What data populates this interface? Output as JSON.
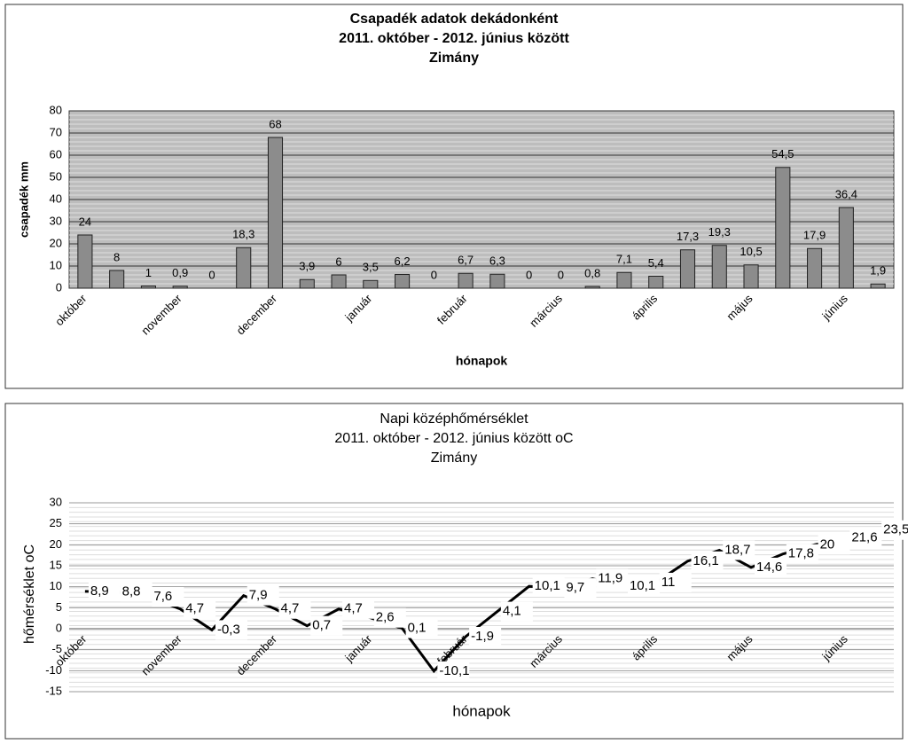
{
  "chart_data": [
    {
      "type": "bar",
      "title": [
        "Csapadék adatok dekádonként",
        "2011. október - 2012. június között",
        "Zimány"
      ],
      "y_label": "csapadék mm",
      "x_label": "hónapok",
      "categories": [
        "október",
        null,
        null,
        "november",
        null,
        null,
        "december",
        null,
        null,
        "január",
        null,
        null,
        "február",
        null,
        null,
        "március",
        null,
        null,
        "április",
        null,
        null,
        "május",
        null,
        null,
        "június",
        null
      ],
      "values": [
        24,
        8,
        1,
        0.9,
        0,
        18.3,
        68,
        3.9,
        6,
        3.5,
        6.2,
        0,
        6.7,
        6.3,
        0,
        0,
        0.8,
        7.1,
        5.4,
        17.3,
        19.3,
        10.5,
        54.5,
        17.9,
        36.4,
        1.9
      ],
      "value_labels": [
        "24",
        "8",
        "1",
        "0,9",
        "0",
        "18,3",
        "68",
        "3,9",
        "6",
        "3,5",
        "6,2",
        "0",
        "6,7",
        "6,3",
        "0",
        "0",
        "0,8",
        "7,1",
        "5,4",
        "17,3",
        "19,3",
        "10,5",
        "54,5",
        "17,9",
        "36,4",
        "1,9"
      ],
      "color": "#8c8c8c",
      "ylim": [
        0,
        80
      ],
      "yticks": [
        0,
        10,
        20,
        30,
        40,
        50,
        60,
        70,
        80
      ],
      "grid": true
    },
    {
      "type": "line",
      "title": [
        "Napi középhőmérséklet",
        "2011. október - 2012. június között oC",
        "Zimány"
      ],
      "y_label": "hőmérséklet oC",
      "x_label": "hónapok",
      "categories": [
        "október",
        null,
        null,
        "november",
        null,
        null,
        "december",
        null,
        null,
        "január",
        null,
        null,
        "február",
        null,
        null,
        "március",
        null,
        null,
        "április",
        null,
        null,
        "május",
        null,
        null,
        "június",
        null
      ],
      "values": [
        8.9,
        8.8,
        7.6,
        4.7,
        -0.3,
        7.9,
        4.7,
        0.7,
        4.7,
        2.6,
        0.1,
        -10.1,
        -1.9,
        4.1,
        10.1,
        9.7,
        11.9,
        10.1,
        11,
        16.1,
        18.7,
        14.6,
        17.8,
        20,
        21.6,
        23.5
      ],
      "value_labels": [
        "8,9",
        "8,8",
        "7,6",
        "4,7",
        "-0,3",
        "7,9",
        "4,7",
        "0,7",
        "4,7",
        "2,6",
        "0,1",
        "-10,1",
        "-1,9",
        "4,1",
        "10,1",
        "9,7",
        "11,9",
        "10,1",
        "11",
        "16,1",
        "18,7",
        "14,6",
        "17,8",
        "20",
        "21,6",
        "23,5"
      ],
      "color": "#000000",
      "ylim": [
        -15,
        30
      ],
      "yticks": [
        -15,
        -10,
        -5,
        0,
        5,
        10,
        15,
        20,
        25,
        30
      ],
      "grid": true
    }
  ]
}
